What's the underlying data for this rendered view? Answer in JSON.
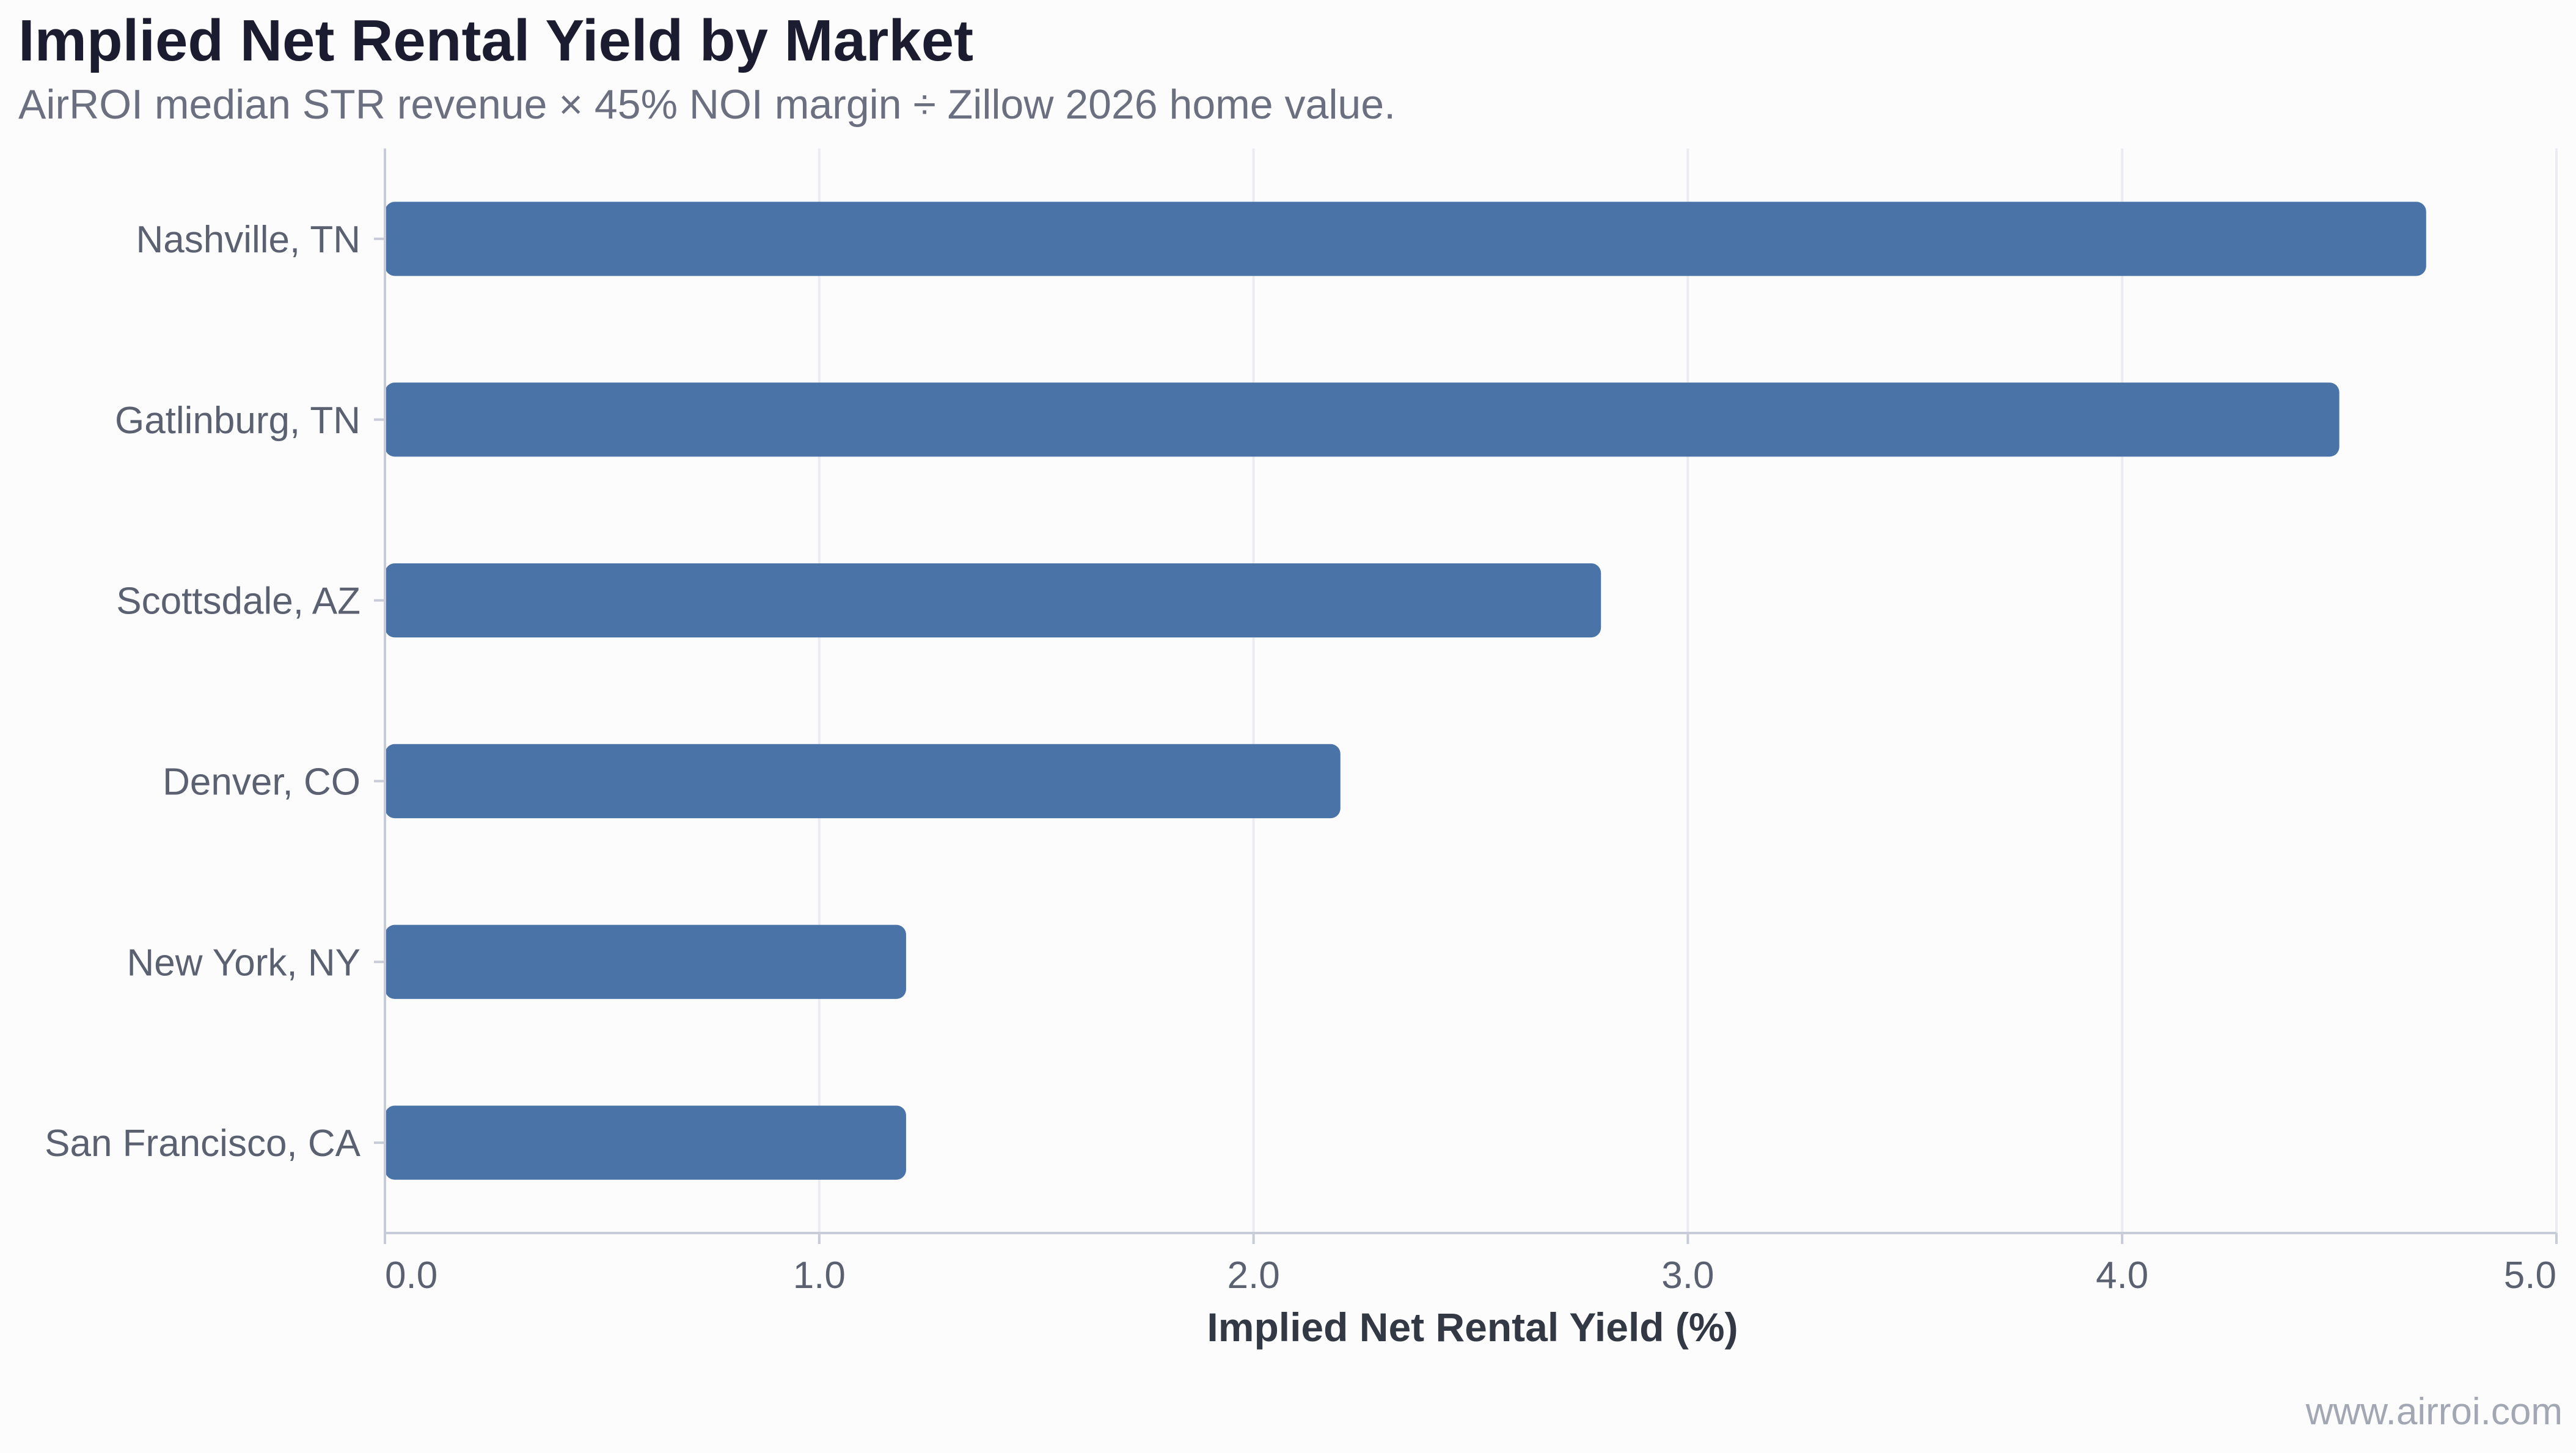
{
  "title": "Implied Net Rental Yield by Market",
  "subtitle": "AirROI median STR revenue × 45% NOI margin ÷ Zillow 2026 home value.",
  "watermark": "www.airroi.com",
  "colors": {
    "bar": "#4a74a8",
    "grid": "#ebebf2",
    "axis": "#c8ccd8",
    "background": "#fcfcfc"
  },
  "chart_data": {
    "type": "bar",
    "orientation": "horizontal",
    "categories": [
      "Nashville, TN",
      "Gatlinburg, TN",
      "Scottsdale, AZ",
      "Denver, CO",
      "New York, NY",
      "San Francisco, CA"
    ],
    "values": [
      4.7,
      4.5,
      2.8,
      2.2,
      1.2,
      1.2
    ],
    "xlabel": "Implied Net Rental Yield (%)",
    "ylabel": "",
    "xlim": [
      0,
      5
    ],
    "xticks": [
      "0.0",
      "1.0",
      "2.0",
      "3.0",
      "4.0",
      "5.0"
    ],
    "grid": "vertical"
  }
}
